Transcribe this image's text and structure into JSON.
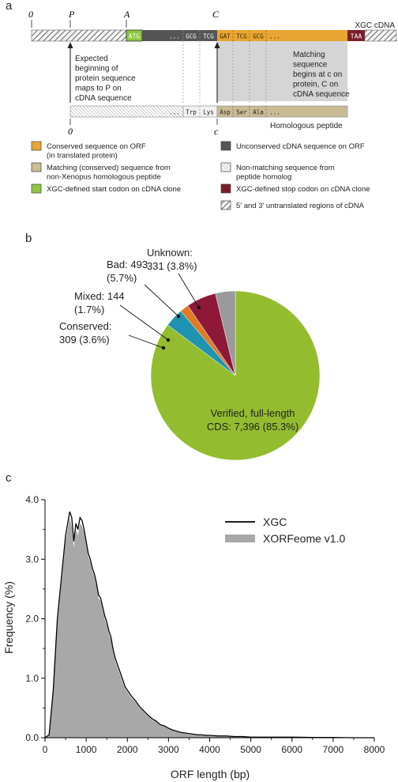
{
  "panel_a": {
    "letter": "a",
    "pos_zero": "0",
    "pos_P": "P",
    "pos_A": "A",
    "pos_C": "C",
    "pos_zero_bottom": "0",
    "pos_c": "c",
    "xgc_cdna_label": "XGC cDNA",
    "atg": "ATG",
    "taa": "TAA",
    "upper_codons": [
      "...",
      "GCG",
      "TCG",
      "GAT",
      "TCG",
      "GCG",
      "..."
    ],
    "lower_codons": [
      "...",
      "Trp",
      "Lys",
      "Asp",
      "Ser",
      "Ala",
      "..."
    ],
    "note_left": [
      "Expected",
      "beginning of",
      "protein sequence",
      "maps to P on",
      "cDNA sequence"
    ],
    "note_right": [
      "Matching",
      "sequence",
      "begins at c on",
      "protein, C on",
      "cDNA sequence"
    ],
    "homologous_peptide_label": "Homologous peptide",
    "legend": [
      {
        "text": [
          "Conserved sequence on ORF",
          "(in translated protein)"
        ],
        "color": "#e8a531",
        "pattern": "solid"
      },
      {
        "text": [
          "Unconserved cDNA sequence on ORF"
        ],
        "color": "#555555",
        "pattern": "solid"
      },
      {
        "text": [
          "Matching (conserved) sequence from",
          "non-Xenopus homologous peptide"
        ],
        "color": "#c9bc94",
        "pattern": "solid"
      },
      {
        "text": [
          "Non-matching sequence from",
          "peptide homolog"
        ],
        "color": "#bbbbbb",
        "pattern": "hatch-fine"
      },
      {
        "text": [
          "XGC-defined start codon on cDNA clone"
        ],
        "color": "#8dc63f",
        "pattern": "solid"
      },
      {
        "text": [
          "XGC-defined stop codon on cDNA clone"
        ],
        "color": "#7a1d2a",
        "pattern": "solid"
      },
      {
        "text": [
          "5′ and 3′ untranslated regions of cDNA"
        ],
        "color": "#777777",
        "pattern": "hatch-coarse"
      }
    ]
  },
  "panel_b": {
    "letter": "b",
    "chart_data": {
      "type": "pie",
      "slices": [
        {
          "label": "Verified, full-length CDS",
          "count": "7,396",
          "percent": 85.3,
          "color": "#93bd2f"
        },
        {
          "label": "Conserved",
          "count": "309",
          "percent": 3.6,
          "color": "#1f93b0"
        },
        {
          "label": "Mixed",
          "count": "144",
          "percent": 1.7,
          "color": "#e07b25"
        },
        {
          "label": "Bad",
          "count": "493",
          "percent": 5.7,
          "color": "#8e1838"
        },
        {
          "label": "Unknown",
          "count": "331",
          "percent": 3.8,
          "color": "#9a9a9a"
        }
      ],
      "label_text": {
        "verified_1": "Verified, full-length",
        "verified_2": "CDS: 7,396 (85.3%)",
        "conserved_1": "Conserved:",
        "conserved_2": "309 (3.6%)",
        "mixed_1": "Mixed: 144",
        "mixed_2": "(1.7%)",
        "bad_1": "Bad: 493",
        "bad_2": "(5.7%)",
        "unknown_1": "Unknown:",
        "unknown_2": "331 (3.8%)"
      }
    }
  },
  "panel_c": {
    "letter": "c",
    "chart_data": {
      "type": "line",
      "xlabel": "ORF length (bp)",
      "ylabel": "Frequency (%)",
      "xlim": [
        0,
        8000
      ],
      "ylim": [
        0,
        4.0
      ],
      "xticks": [
        "0",
        "1000",
        "2000",
        "3000",
        "4000",
        "5000",
        "6000",
        "7000",
        "8000"
      ],
      "yticks": [
        "0.0",
        "1.0",
        "2.0",
        "3.0",
        "4.0"
      ],
      "legend_position": "top-right",
      "series": [
        {
          "name": "XGC",
          "style": "line",
          "color": "#000000",
          "x": [
            0,
            100,
            200,
            300,
            400,
            500,
            550,
            600,
            650,
            700,
            750,
            800,
            850,
            900,
            950,
            1000,
            1050,
            1100,
            1150,
            1200,
            1250,
            1300,
            1350,
            1400,
            1450,
            1500,
            1550,
            1600,
            1650,
            1700,
            1750,
            1800,
            1850,
            1900,
            1950,
            2000,
            2100,
            2200,
            2300,
            2400,
            2500,
            2600,
            2700,
            2800,
            2900,
            3000,
            3100,
            3200,
            3300,
            3400,
            3500,
            3600,
            3700,
            3800,
            3900,
            4000,
            4200,
            4400,
            4600,
            4800,
            5000,
            5500,
            6000,
            6500,
            7000,
            7500,
            8000
          ],
          "y": [
            0,
            0.05,
            0.8,
            2.0,
            2.7,
            3.4,
            3.6,
            3.8,
            3.7,
            3.3,
            3.6,
            3.5,
            3.7,
            3.65,
            3.5,
            3.3,
            3.1,
            3.0,
            2.85,
            2.75,
            2.6,
            2.4,
            2.35,
            2.2,
            2.05,
            1.95,
            1.8,
            1.7,
            1.5,
            1.35,
            1.25,
            1.15,
            1.05,
            0.95,
            0.85,
            0.8,
            0.7,
            0.62,
            0.52,
            0.45,
            0.38,
            0.32,
            0.28,
            0.22,
            0.2,
            0.16,
            0.13,
            0.11,
            0.09,
            0.08,
            0.07,
            0.06,
            0.05,
            0.05,
            0.04,
            0.04,
            0.03,
            0.03,
            0.02,
            0.02,
            0.01,
            0.01,
            0.01,
            0.005,
            0.005,
            0,
            0
          ]
        },
        {
          "name": "XORFeome v1.0",
          "style": "area",
          "color": "#a8a8a8",
          "x": [
            0,
            100,
            200,
            300,
            400,
            500,
            550,
            600,
            650,
            700,
            750,
            800,
            850,
            900,
            950,
            1000,
            1050,
            1100,
            1150,
            1200,
            1250,
            1300,
            1350,
            1400,
            1450,
            1500,
            1550,
            1600,
            1650,
            1700,
            1750,
            1800,
            1850,
            1900,
            1950,
            2000,
            2100,
            2200,
            2300,
            2400,
            2500,
            2600,
            2700,
            2800,
            2900,
            3000,
            3100,
            3200,
            3300,
            3400,
            3500,
            3600,
            3700,
            3800,
            3900,
            4000,
            4200,
            4400,
            4600,
            4800,
            5000,
            5500,
            6000,
            6500,
            7000,
            7500,
            8000
          ],
          "y": [
            0,
            0.04,
            0.75,
            1.9,
            2.6,
            3.3,
            3.5,
            3.7,
            3.55,
            3.2,
            3.5,
            3.4,
            3.6,
            3.55,
            3.45,
            3.25,
            3.05,
            2.95,
            2.8,
            2.7,
            2.55,
            2.35,
            2.3,
            2.15,
            2.0,
            1.9,
            1.75,
            1.65,
            1.45,
            1.3,
            1.2,
            1.1,
            1.0,
            0.9,
            0.82,
            0.77,
            0.67,
            0.6,
            0.5,
            0.43,
            0.36,
            0.3,
            0.27,
            0.21,
            0.19,
            0.15,
            0.12,
            0.1,
            0.08,
            0.07,
            0.06,
            0.05,
            0.05,
            0.04,
            0.04,
            0.03,
            0.03,
            0.02,
            0.02,
            0.01,
            0.01,
            0.01,
            0.005,
            0.005,
            0,
            0,
            0
          ]
        }
      ]
    }
  }
}
